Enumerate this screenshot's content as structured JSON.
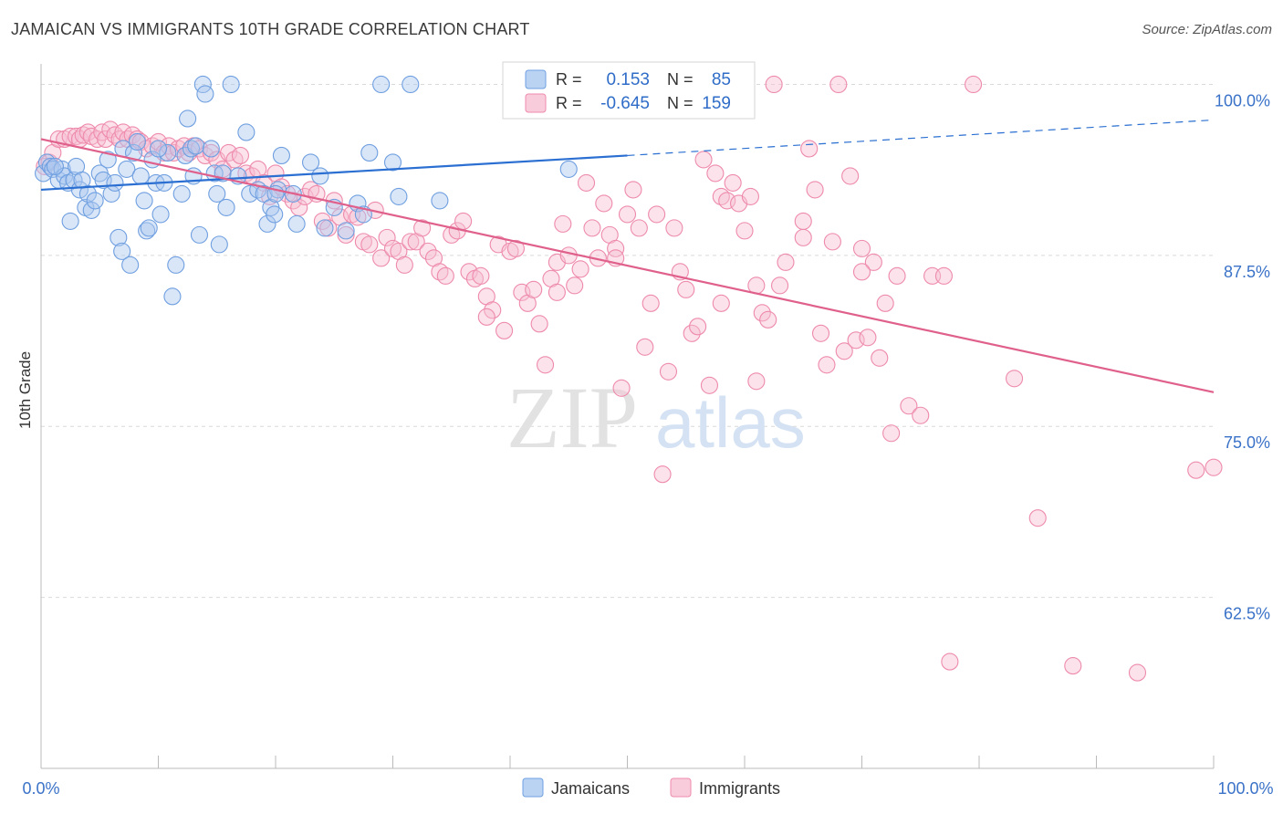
{
  "header": {
    "title": "JAMAICAN VS IMMIGRANTS 10TH GRADE CORRELATION CHART",
    "source": "Source: ZipAtlas.com"
  },
  "watermark": {
    "part1": "ZIP",
    "part2": "atlas"
  },
  "colors": {
    "jamaicans": "#6f9fe0",
    "jamaicans_fill": "#aac8f0",
    "immigrants": "#ee8aac",
    "immigrants_fill": "#f7bfd2",
    "jam_line": "#2a6fd1",
    "imm_line": "#e0608c",
    "tick_label": "#3a72c8",
    "grid": "#d9d9d9"
  },
  "legend": {
    "rows": [
      {
        "r_label": "R =",
        "r_value": "0.153",
        "n_label": "N =",
        "n_value": "85"
      },
      {
        "r_label": "R =",
        "r_value": "-0.645",
        "n_label": "N =",
        "n_value": "159"
      }
    ]
  },
  "bottom_legend": [
    "Jamaicans",
    "Immigrants"
  ],
  "chart_data": {
    "type": "scatter",
    "title": "JAMAICAN VS IMMIGRANTS 10TH GRADE CORRELATION CHART",
    "xlabel": "",
    "ylabel": "10th Grade",
    "xlim": [
      0,
      100
    ],
    "ylim": [
      50,
      101.5
    ],
    "x_tick_labels": [
      "0.0%",
      "100.0%"
    ],
    "y_ticks": [
      62.5,
      75.0,
      87.5,
      100.0
    ],
    "y_tick_labels": [
      "62.5%",
      "75.0%",
      "87.5%",
      "100.0%"
    ],
    "grid": true,
    "legend_position": "top-center",
    "series": [
      {
        "name": "Jamaicans",
        "r": 0.153,
        "n": 85,
        "trend": {
          "x": [
            0,
            50,
            100
          ],
          "y": [
            92.3,
            94.8,
            97.4
          ],
          "solid_until": 50
        },
        "points": [
          [
            0.2,
            93.5
          ],
          [
            0.5,
            94.3
          ],
          [
            0.8,
            94.0
          ],
          [
            1.0,
            93.8
          ],
          [
            1.5,
            93.0
          ],
          [
            1.8,
            93.8
          ],
          [
            2.0,
            93.3
          ],
          [
            2.3,
            92.8
          ],
          [
            2.5,
            90.0
          ],
          [
            2.8,
            93.0
          ],
          [
            3.0,
            94.0
          ],
          [
            3.3,
            92.3
          ],
          [
            3.5,
            93.0
          ],
          [
            3.8,
            91.0
          ],
          [
            4.0,
            92.0
          ],
          [
            4.3,
            90.8
          ],
          [
            4.6,
            91.5
          ],
          [
            5.0,
            93.5
          ],
          [
            5.3,
            93.0
          ],
          [
            5.7,
            94.5
          ],
          [
            6.0,
            92.0
          ],
          [
            6.3,
            92.8
          ],
          [
            6.6,
            88.8
          ],
          [
            6.9,
            87.8
          ],
          [
            7.0,
            95.3
          ],
          [
            7.3,
            93.8
          ],
          [
            7.6,
            86.8
          ],
          [
            7.9,
            95.0
          ],
          [
            8.2,
            95.8
          ],
          [
            8.5,
            93.3
          ],
          [
            8.8,
            91.5
          ],
          [
            9.0,
            89.3
          ],
          [
            9.2,
            89.5
          ],
          [
            9.5,
            94.5
          ],
          [
            9.8,
            92.8
          ],
          [
            10.2,
            90.5
          ],
          [
            10.5,
            92.8
          ],
          [
            10.8,
            95.0
          ],
          [
            11.2,
            84.5
          ],
          [
            11.5,
            86.8
          ],
          [
            12.0,
            92.0
          ],
          [
            12.3,
            94.8
          ],
          [
            12.5,
            97.5
          ],
          [
            12.8,
            95.3
          ],
          [
            13.0,
            93.3
          ],
          [
            13.2,
            95.5
          ],
          [
            13.5,
            89.0
          ],
          [
            13.8,
            100.0
          ],
          [
            14.0,
            99.3
          ],
          [
            14.5,
            95.3
          ],
          [
            14.8,
            93.5
          ],
          [
            15.0,
            92.0
          ],
          [
            15.2,
            88.3
          ],
          [
            15.5,
            93.5
          ],
          [
            15.8,
            91.0
          ],
          [
            16.2,
            100.0
          ],
          [
            16.8,
            93.3
          ],
          [
            17.5,
            96.5
          ],
          [
            17.8,
            92.0
          ],
          [
            18.5,
            92.3
          ],
          [
            19.0,
            92.0
          ],
          [
            19.3,
            89.8
          ],
          [
            19.6,
            91.0
          ],
          [
            19.9,
            90.5
          ],
          [
            20.2,
            92.3
          ],
          [
            20.5,
            94.8
          ],
          [
            21.5,
            92.0
          ],
          [
            21.8,
            89.8
          ],
          [
            23.0,
            94.3
          ],
          [
            23.8,
            93.3
          ],
          [
            24.2,
            89.5
          ],
          [
            25.0,
            91.0
          ],
          [
            26.0,
            89.3
          ],
          [
            27.0,
            91.3
          ],
          [
            27.5,
            90.5
          ],
          [
            28.0,
            95.0
          ],
          [
            29.0,
            100.0
          ],
          [
            30.0,
            94.3
          ],
          [
            30.5,
            91.8
          ],
          [
            31.5,
            100.0
          ],
          [
            34.0,
            91.5
          ],
          [
            45.0,
            93.8
          ],
          [
            10.0,
            95.3
          ],
          [
            20.0,
            92.0
          ],
          [
            1.2,
            94.0
          ]
        ]
      },
      {
        "name": "Immigrants",
        "r": -0.645,
        "n": 159,
        "trend": {
          "x": [
            0,
            100
          ],
          "y": [
            96.0,
            77.5
          ]
        },
        "points": [
          [
            0.3,
            94.0
          ],
          [
            0.7,
            94.3
          ],
          [
            1.0,
            95.0
          ],
          [
            1.5,
            96.0
          ],
          [
            2.0,
            96.0
          ],
          [
            2.5,
            96.2
          ],
          [
            3.0,
            96.2
          ],
          [
            3.3,
            96.0
          ],
          [
            3.6,
            96.3
          ],
          [
            4.0,
            96.5
          ],
          [
            4.3,
            96.2
          ],
          [
            4.8,
            96.0
          ],
          [
            5.2,
            96.5
          ],
          [
            5.5,
            96.0
          ],
          [
            5.9,
            96.7
          ],
          [
            6.3,
            96.3
          ],
          [
            6.7,
            96.0
          ],
          [
            7.0,
            96.5
          ],
          [
            7.4,
            96.0
          ],
          [
            7.8,
            96.3
          ],
          [
            8.2,
            96.0
          ],
          [
            8.5,
            95.8
          ],
          [
            9.0,
            95.3
          ],
          [
            9.5,
            95.5
          ],
          [
            10.0,
            95.8
          ],
          [
            10.5,
            95.0
          ],
          [
            10.9,
            95.5
          ],
          [
            11.3,
            95.0
          ],
          [
            11.7,
            95.3
          ],
          [
            12.2,
            95.5
          ],
          [
            12.6,
            95.0
          ],
          [
            13.0,
            95.5
          ],
          [
            13.5,
            95.3
          ],
          [
            14.0,
            94.8
          ],
          [
            14.5,
            95.0
          ],
          [
            15.0,
            94.5
          ],
          [
            15.5,
            93.8
          ],
          [
            16.0,
            95.0
          ],
          [
            16.5,
            94.5
          ],
          [
            17.0,
            94.8
          ],
          [
            17.5,
            93.5
          ],
          [
            18.0,
            93.3
          ],
          [
            18.5,
            93.8
          ],
          [
            19.0,
            92.8
          ],
          [
            19.5,
            91.8
          ],
          [
            20.0,
            93.5
          ],
          [
            20.5,
            92.5
          ],
          [
            21.0,
            92.0
          ],
          [
            21.5,
            91.5
          ],
          [
            22.0,
            91.0
          ],
          [
            22.5,
            91.8
          ],
          [
            23.0,
            92.3
          ],
          [
            23.5,
            92.0
          ],
          [
            24.0,
            90.0
          ],
          [
            24.5,
            89.5
          ],
          [
            25.0,
            91.5
          ],
          [
            25.5,
            90.3
          ],
          [
            26.0,
            89.0
          ],
          [
            26.5,
            90.5
          ],
          [
            27.0,
            90.3
          ],
          [
            27.5,
            88.5
          ],
          [
            28.0,
            88.3
          ],
          [
            28.5,
            90.8
          ],
          [
            29.0,
            87.3
          ],
          [
            29.5,
            88.8
          ],
          [
            30.0,
            88.0
          ],
          [
            30.5,
            87.8
          ],
          [
            31.0,
            86.8
          ],
          [
            31.5,
            88.5
          ],
          [
            32.0,
            88.5
          ],
          [
            32.5,
            89.5
          ],
          [
            33.0,
            87.8
          ],
          [
            33.5,
            87.3
          ],
          [
            34.0,
            86.3
          ],
          [
            34.5,
            86.0
          ],
          [
            35.0,
            89.0
          ],
          [
            35.5,
            89.3
          ],
          [
            36.0,
            90.0
          ],
          [
            36.5,
            86.3
          ],
          [
            37.0,
            85.8
          ],
          [
            37.5,
            86.0
          ],
          [
            38.0,
            84.5
          ],
          [
            38.5,
            83.5
          ],
          [
            39.0,
            88.3
          ],
          [
            39.5,
            82.0
          ],
          [
            40.0,
            87.8
          ],
          [
            40.5,
            88.0
          ],
          [
            41.0,
            84.8
          ],
          [
            41.5,
            84.0
          ],
          [
            42.0,
            85.0
          ],
          [
            42.5,
            82.5
          ],
          [
            43.0,
            79.5
          ],
          [
            43.5,
            85.8
          ],
          [
            44.0,
            87.0
          ],
          [
            44.5,
            89.8
          ],
          [
            45.0,
            87.5
          ],
          [
            45.5,
            85.3
          ],
          [
            46.0,
            86.5
          ],
          [
            46.5,
            92.8
          ],
          [
            47.0,
            89.5
          ],
          [
            47.5,
            87.3
          ],
          [
            48.0,
            91.3
          ],
          [
            48.5,
            89.0
          ],
          [
            49.0,
            88.0
          ],
          [
            49.5,
            77.8
          ],
          [
            50.0,
            90.5
          ],
          [
            50.5,
            92.3
          ],
          [
            51.0,
            89.5
          ],
          [
            51.5,
            80.8
          ],
          [
            52.0,
            84.0
          ],
          [
            52.5,
            90.5
          ],
          [
            53.0,
            71.5
          ],
          [
            53.5,
            79.0
          ],
          [
            54.0,
            89.5
          ],
          [
            54.5,
            86.3
          ],
          [
            55.0,
            85.0
          ],
          [
            55.5,
            81.8
          ],
          [
            56.0,
            82.3
          ],
          [
            56.5,
            94.5
          ],
          [
            57.0,
            78.0
          ],
          [
            57.5,
            93.5
          ],
          [
            58.0,
            91.8
          ],
          [
            58.5,
            91.5
          ],
          [
            59.0,
            92.8
          ],
          [
            59.5,
            91.3
          ],
          [
            60.0,
            89.3
          ],
          [
            60.5,
            91.8
          ],
          [
            61.0,
            85.3
          ],
          [
            61.5,
            83.3
          ],
          [
            62.0,
            82.8
          ],
          [
            62.5,
            100.0
          ],
          [
            63.0,
            85.3
          ],
          [
            63.5,
            87.0
          ],
          [
            65.0,
            88.8
          ],
          [
            65.5,
            95.3
          ],
          [
            66.0,
            92.3
          ],
          [
            66.5,
            81.8
          ],
          [
            67.0,
            79.5
          ],
          [
            67.5,
            88.5
          ],
          [
            68.0,
            100.0
          ],
          [
            68.5,
            80.5
          ],
          [
            69.0,
            93.3
          ],
          [
            69.5,
            81.3
          ],
          [
            70.0,
            88.0
          ],
          [
            70.5,
            81.5
          ],
          [
            71.0,
            87.0
          ],
          [
            71.5,
            80.0
          ],
          [
            72.0,
            84.0
          ],
          [
            72.5,
            74.5
          ],
          [
            73.0,
            86.0
          ],
          [
            74.0,
            76.5
          ],
          [
            75.0,
            75.8
          ],
          [
            76.0,
            86.0
          ],
          [
            77.0,
            86.0
          ],
          [
            79.5,
            100.0
          ],
          [
            83.0,
            78.5
          ],
          [
            85.0,
            68.3
          ],
          [
            88.0,
            57.5
          ],
          [
            93.5,
            57.0
          ],
          [
            100.0,
            72.0
          ],
          [
            70.0,
            86.3
          ],
          [
            77.5,
            57.8
          ],
          [
            98.5,
            71.8
          ],
          [
            61.0,
            78.3
          ],
          [
            49.0,
            87.3
          ],
          [
            65.0,
            90.0
          ],
          [
            58.0,
            84.0
          ],
          [
            44.0,
            84.8
          ],
          [
            38.0,
            83.0
          ]
        ]
      }
    ]
  }
}
